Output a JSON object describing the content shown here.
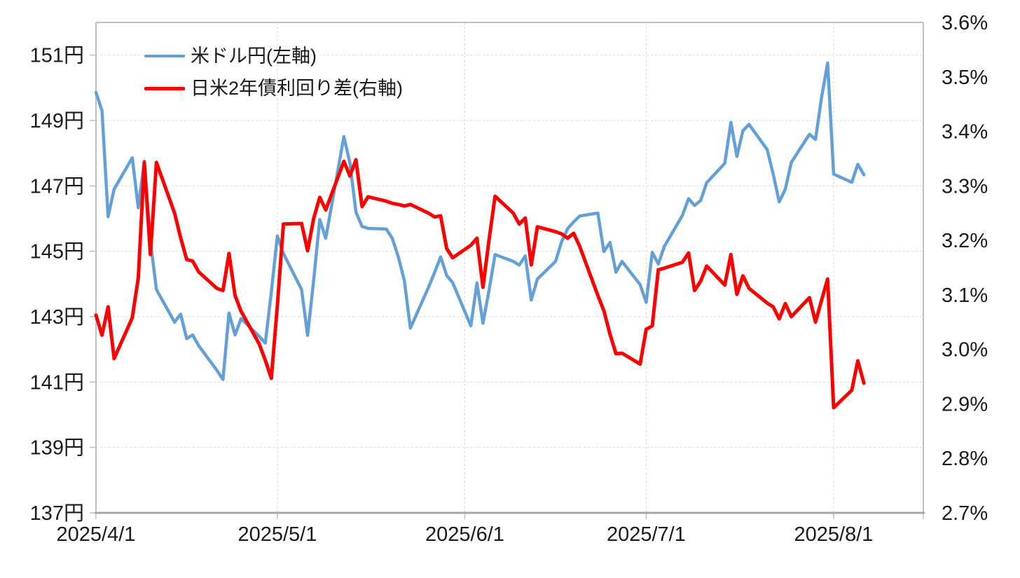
{
  "chart_data": {
    "type": "line",
    "title": "",
    "background": "#ffffff",
    "grid": {
      "color": "#d9d9d9",
      "dash": "3 3",
      "width": 1
    },
    "axis_line": {
      "color": "#bfbfbf",
      "bottom_color": "#a6a6a6",
      "tick_color": "#bfbfbf"
    },
    "text_color": "#1a1a1a",
    "axis_font_px": 29,
    "legend": {
      "position": "top-left-inside"
    },
    "x_axis": {
      "start_date": "2025/4/1",
      "ticks": [
        {
          "label": "2025/4/1",
          "date": "2025/4/1"
        },
        {
          "label": "2025/5/1",
          "date": "2025/5/1"
        },
        {
          "label": "2025/6/1",
          "date": "2025/6/1"
        },
        {
          "label": "2025/7/1",
          "date": "2025/7/1"
        },
        {
          "label": "2025/8/1",
          "date": "2025/8/1"
        }
      ]
    },
    "left_axis": {
      "unit": "円",
      "min": 137,
      "max": 152,
      "ticks": [
        {
          "label": "151円",
          "value": 151
        },
        {
          "label": "149円",
          "value": 149
        },
        {
          "label": "147円",
          "value": 147
        },
        {
          "label": "145円",
          "value": 145
        },
        {
          "label": "143円",
          "value": 143
        },
        {
          "label": "141円",
          "value": 141
        },
        {
          "label": "139円",
          "value": 139
        },
        {
          "label": "137円",
          "value": 137
        }
      ]
    },
    "right_axis": {
      "unit": "%",
      "min": 2.7,
      "max": 3.6,
      "ticks": [
        {
          "label": "3.6%",
          "value": 3.6
        },
        {
          "label": "3.5%",
          "value": 3.5
        },
        {
          "label": "3.4%",
          "value": 3.4
        },
        {
          "label": "3.3%",
          "value": 3.3
        },
        {
          "label": "3.2%",
          "value": 3.2
        },
        {
          "label": "3.1%",
          "value": 3.1
        },
        {
          "label": "3.0%",
          "value": 3.0
        },
        {
          "label": "2.9%",
          "value": 2.9
        },
        {
          "label": "2.8%",
          "value": 2.8
        },
        {
          "label": "2.7%",
          "value": 2.7
        }
      ]
    },
    "series": [
      {
        "name": "米ドル円(左軸)",
        "axis": "left",
        "color": "#64a0d8",
        "stroke_width": 4.5,
        "points": [
          [
            "2025/4/1",
            149.86
          ],
          [
            "2025/4/2",
            149.3
          ],
          [
            "2025/4/3",
            146.06
          ],
          [
            "2025/4/4",
            146.9
          ],
          [
            "2025/4/7",
            147.86
          ],
          [
            "2025/4/8",
            146.33
          ],
          [
            "2025/4/9",
            147.76
          ],
          [
            "2025/4/10",
            145.3
          ],
          [
            "2025/4/11",
            143.83
          ],
          [
            "2025/4/14",
            142.83
          ],
          [
            "2025/4/15",
            143.08
          ],
          [
            "2025/4/16",
            142.33
          ],
          [
            "2025/4/17",
            142.44
          ],
          [
            "2025/4/18",
            142.11
          ],
          [
            "2025/4/21",
            141.36
          ],
          [
            "2025/4/22",
            141.08
          ],
          [
            "2025/4/23",
            143.11
          ],
          [
            "2025/4/24",
            142.44
          ],
          [
            "2025/4/25",
            142.94
          ],
          [
            "2025/4/28",
            142.4
          ],
          [
            "2025/4/29",
            142.19
          ],
          [
            "2025/4/30",
            143.75
          ],
          [
            "2025/5/1",
            145.47
          ],
          [
            "2025/5/2",
            144.93
          ],
          [
            "2025/5/5",
            143.83
          ],
          [
            "2025/5/6",
            142.43
          ],
          [
            "2025/5/7",
            144.1
          ],
          [
            "2025/5/8",
            145.97
          ],
          [
            "2025/5/9",
            145.4
          ],
          [
            "2025/5/12",
            148.51
          ],
          [
            "2025/5/13",
            147.7
          ],
          [
            "2025/5/14",
            146.2
          ],
          [
            "2025/5/15",
            145.76
          ],
          [
            "2025/5/16",
            145.7
          ],
          [
            "2025/5/19",
            145.68
          ],
          [
            "2025/5/20",
            145.4
          ],
          [
            "2025/5/21",
            144.83
          ],
          [
            "2025/5/22",
            144.1
          ],
          [
            "2025/5/23",
            142.65
          ],
          [
            "2025/5/26",
            143.9
          ],
          [
            "2025/5/27",
            144.35
          ],
          [
            "2025/5/28",
            144.83
          ],
          [
            "2025/5/29",
            144.26
          ],
          [
            "2025/5/30",
            144.04
          ],
          [
            "2025/6/2",
            142.72
          ],
          [
            "2025/6/3",
            144.03
          ],
          [
            "2025/6/4",
            142.8
          ],
          [
            "2025/6/5",
            143.8
          ],
          [
            "2025/6/6",
            144.9
          ],
          [
            "2025/6/9",
            144.69
          ],
          [
            "2025/6/10",
            144.58
          ],
          [
            "2025/6/11",
            144.86
          ],
          [
            "2025/6/12",
            143.51
          ],
          [
            "2025/6/13",
            144.15
          ],
          [
            "2025/6/16",
            144.69
          ],
          [
            "2025/6/17",
            145.29
          ],
          [
            "2025/6/18",
            145.69
          ],
          [
            "2025/6/19",
            145.9
          ],
          [
            "2025/6/20",
            146.08
          ],
          [
            "2025/6/23",
            146.17
          ],
          [
            "2025/6/24",
            144.99
          ],
          [
            "2025/6/25",
            145.27
          ],
          [
            "2025/6/26",
            144.36
          ],
          [
            "2025/6/27",
            144.69
          ],
          [
            "2025/6/30",
            143.98
          ],
          [
            "2025/7/1",
            143.44
          ],
          [
            "2025/7/2",
            144.97
          ],
          [
            "2025/7/3",
            144.61
          ],
          [
            "2025/7/4",
            145.15
          ],
          [
            "2025/7/7",
            146.1
          ],
          [
            "2025/7/8",
            146.61
          ],
          [
            "2025/7/9",
            146.4
          ],
          [
            "2025/7/10",
            146.55
          ],
          [
            "2025/7/11",
            147.1
          ],
          [
            "2025/7/14",
            147.69
          ],
          [
            "2025/7/15",
            148.94
          ],
          [
            "2025/7/16",
            147.9
          ],
          [
            "2025/7/17",
            148.69
          ],
          [
            "2025/7/18",
            148.88
          ],
          [
            "2025/7/21",
            148.11
          ],
          [
            "2025/7/22",
            147.36
          ],
          [
            "2025/7/23",
            146.51
          ],
          [
            "2025/7/24",
            146.9
          ],
          [
            "2025/7/25",
            147.72
          ],
          [
            "2025/7/28",
            148.58
          ],
          [
            "2025/7/29",
            148.42
          ],
          [
            "2025/7/30",
            149.7
          ],
          [
            "2025/7/31",
            150.76
          ],
          [
            "2025/8/1",
            147.36
          ],
          [
            "2025/8/4",
            147.11
          ],
          [
            "2025/8/5",
            147.66
          ],
          [
            "2025/8/6",
            147.34
          ]
        ]
      },
      {
        "name": "日米2年債利回り差(右軸)",
        "axis": "right",
        "color": "#ff0000",
        "stroke_width": 5,
        "points": [
          [
            "2025/4/1",
            3.063
          ],
          [
            "2025/4/2",
            3.026
          ],
          [
            "2025/4/3",
            3.078
          ],
          [
            "2025/4/4",
            2.983
          ],
          [
            "2025/4/7",
            3.058
          ],
          [
            "2025/4/8",
            3.131
          ],
          [
            "2025/4/9",
            3.343
          ],
          [
            "2025/4/10",
            3.174
          ],
          [
            "2025/4/11",
            3.343
          ],
          [
            "2025/4/14",
            3.25
          ],
          [
            "2025/4/15",
            3.205
          ],
          [
            "2025/4/16",
            3.165
          ],
          [
            "2025/4/17",
            3.162
          ],
          [
            "2025/4/18",
            3.142
          ],
          [
            "2025/4/21",
            3.112
          ],
          [
            "2025/4/22",
            3.108
          ],
          [
            "2025/4/23",
            3.176
          ],
          [
            "2025/4/24",
            3.099
          ],
          [
            "2025/4/25",
            3.07
          ],
          [
            "2025/4/28",
            3.01
          ],
          [
            "2025/4/29",
            2.98
          ],
          [
            "2025/4/30",
            2.947
          ],
          [
            "2025/5/1",
            3.08
          ],
          [
            "2025/5/2",
            3.23
          ],
          [
            "2025/5/5",
            3.231
          ],
          [
            "2025/5/6",
            3.181
          ],
          [
            "2025/5/7",
            3.24
          ],
          [
            "2025/5/8",
            3.279
          ],
          [
            "2025/5/9",
            3.256
          ],
          [
            "2025/5/12",
            3.345
          ],
          [
            "2025/5/13",
            3.318
          ],
          [
            "2025/5/14",
            3.348
          ],
          [
            "2025/5/15",
            3.262
          ],
          [
            "2025/5/16",
            3.28
          ],
          [
            "2025/5/19",
            3.272
          ],
          [
            "2025/5/20",
            3.268
          ],
          [
            "2025/5/21",
            3.266
          ],
          [
            "2025/5/22",
            3.263
          ],
          [
            "2025/5/23",
            3.266
          ],
          [
            "2025/5/26",
            3.25
          ],
          [
            "2025/5/27",
            3.243
          ],
          [
            "2025/5/28",
            3.245
          ],
          [
            "2025/5/29",
            3.185
          ],
          [
            "2025/5/30",
            3.168
          ],
          [
            "2025/6/2",
            3.191
          ],
          [
            "2025/6/3",
            3.204
          ],
          [
            "2025/6/4",
            3.114
          ],
          [
            "2025/6/5",
            3.2
          ],
          [
            "2025/6/6",
            3.281
          ],
          [
            "2025/6/9",
            3.25
          ],
          [
            "2025/6/10",
            3.23
          ],
          [
            "2025/6/11",
            3.241
          ],
          [
            "2025/6/12",
            3.155
          ],
          [
            "2025/6/13",
            3.225
          ],
          [
            "2025/6/16",
            3.216
          ],
          [
            "2025/6/17",
            3.212
          ],
          [
            "2025/6/18",
            3.204
          ],
          [
            "2025/6/19",
            3.213
          ],
          [
            "2025/6/20",
            3.189
          ],
          [
            "2025/6/23",
            3.099
          ],
          [
            "2025/6/24",
            3.071
          ],
          [
            "2025/6/25",
            3.028
          ],
          [
            "2025/6/26",
            2.992
          ],
          [
            "2025/6/27",
            2.993
          ],
          [
            "2025/6/30",
            2.973
          ],
          [
            "2025/7/1",
            3.037
          ],
          [
            "2025/7/2",
            3.043
          ],
          [
            "2025/7/3",
            3.146
          ],
          [
            "2025/7/4",
            3.149
          ],
          [
            "2025/7/7",
            3.16
          ],
          [
            "2025/7/8",
            3.177
          ],
          [
            "2025/7/9",
            3.108
          ],
          [
            "2025/7/10",
            3.125
          ],
          [
            "2025/7/11",
            3.153
          ],
          [
            "2025/7/14",
            3.118
          ],
          [
            "2025/7/15",
            3.174
          ],
          [
            "2025/7/16",
            3.101
          ],
          [
            "2025/7/17",
            3.135
          ],
          [
            "2025/7/18",
            3.112
          ],
          [
            "2025/7/21",
            3.085
          ],
          [
            "2025/7/22",
            3.078
          ],
          [
            "2025/7/23",
            3.056
          ],
          [
            "2025/7/24",
            3.084
          ],
          [
            "2025/7/25",
            3.06
          ],
          [
            "2025/7/28",
            3.095
          ],
          [
            "2025/7/29",
            3.05
          ],
          [
            "2025/7/30",
            3.09
          ],
          [
            "2025/7/31",
            3.129
          ],
          [
            "2025/8/1",
            2.893
          ],
          [
            "2025/8/4",
            2.925
          ],
          [
            "2025/8/5",
            2.979
          ],
          [
            "2025/8/6",
            2.938
          ]
        ]
      }
    ]
  }
}
